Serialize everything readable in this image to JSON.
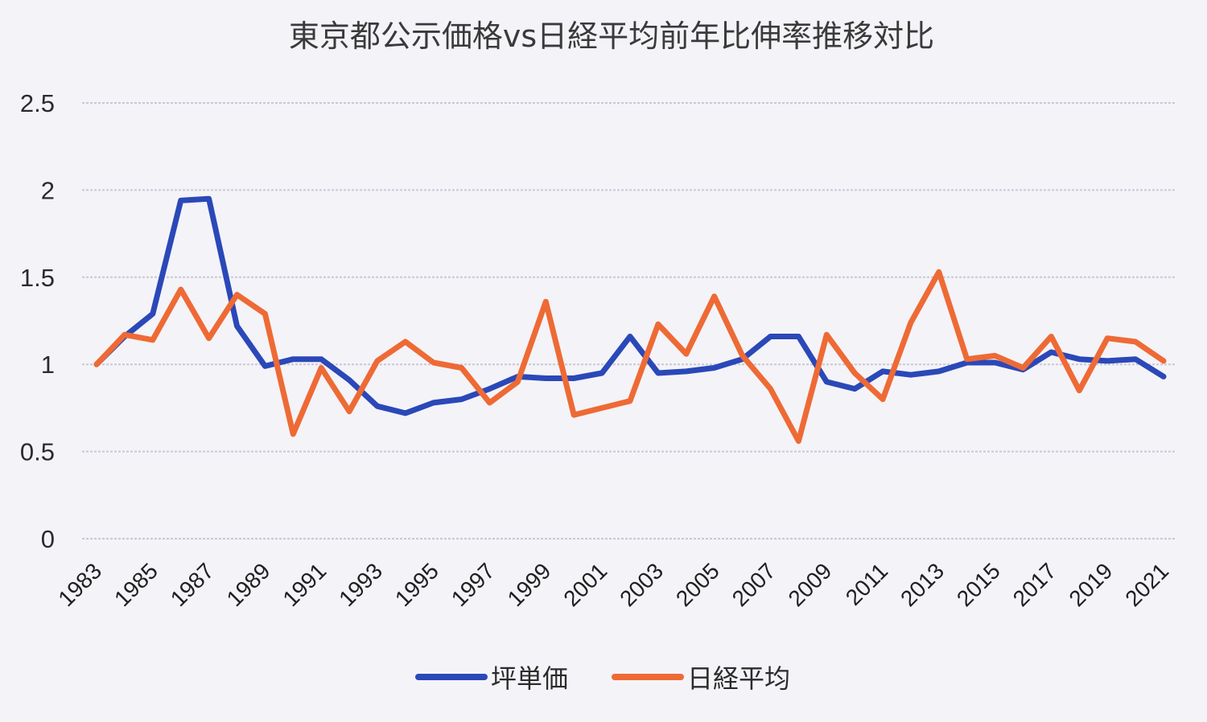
{
  "chart_data": {
    "type": "line",
    "title": "東京都公示価格vs日経平均前年比伸率推移対比",
    "xlabel": "",
    "ylabel": "",
    "ylim": [
      0,
      2.5
    ],
    "yticks": [
      "0",
      "0.5",
      "1",
      "1.5",
      "2",
      "2.5"
    ],
    "x": [
      "1983",
      "1984",
      "1985",
      "1986",
      "1987",
      "1988",
      "1989",
      "1990",
      "1991",
      "1992",
      "1993",
      "1994",
      "1995",
      "1996",
      "1997",
      "1998",
      "1999",
      "2000",
      "2001",
      "2002",
      "2003",
      "2004",
      "2005",
      "2006",
      "2007",
      "2008",
      "2009",
      "2010",
      "2011",
      "2012",
      "2013",
      "2014",
      "2015",
      "2016",
      "2017",
      "2018",
      "2019",
      "2020",
      "2021"
    ],
    "xtick_labels": [
      "1983",
      "1985",
      "1987",
      "1989",
      "1991",
      "1993",
      "1995",
      "1997",
      "1999",
      "2001",
      "2003",
      "2005",
      "2007",
      "2009",
      "2011",
      "2013",
      "2015",
      "2017",
      "2019",
      "2021"
    ],
    "grid": true,
    "legend_position": "bottom",
    "series": [
      {
        "name": "坪単価",
        "color": "#2b48b8",
        "values": [
          1.0,
          1.16,
          1.29,
          1.94,
          1.95,
          1.22,
          0.99,
          1.03,
          1.03,
          0.91,
          0.76,
          0.72,
          0.78,
          0.8,
          0.86,
          0.93,
          0.92,
          0.92,
          0.95,
          1.16,
          0.95,
          0.96,
          0.98,
          1.03,
          1.16,
          1.16,
          0.9,
          0.86,
          0.96,
          0.94,
          0.96,
          1.01,
          1.01,
          0.97,
          1.07,
          1.03,
          1.02,
          1.03,
          0.93
        ]
      },
      {
        "name": "日経平均",
        "color": "#ee6a35",
        "values": [
          1.0,
          1.17,
          1.14,
          1.43,
          1.15,
          1.4,
          1.29,
          0.6,
          0.98,
          0.73,
          1.02,
          1.13,
          1.01,
          0.98,
          0.78,
          0.9,
          1.36,
          0.71,
          0.75,
          0.79,
          1.23,
          1.06,
          1.39,
          1.05,
          0.86,
          0.56,
          1.17,
          0.95,
          0.8,
          1.24,
          1.53,
          1.03,
          1.05,
          0.98,
          1.16,
          0.85,
          1.15,
          1.13,
          1.02
        ]
      }
    ]
  }
}
